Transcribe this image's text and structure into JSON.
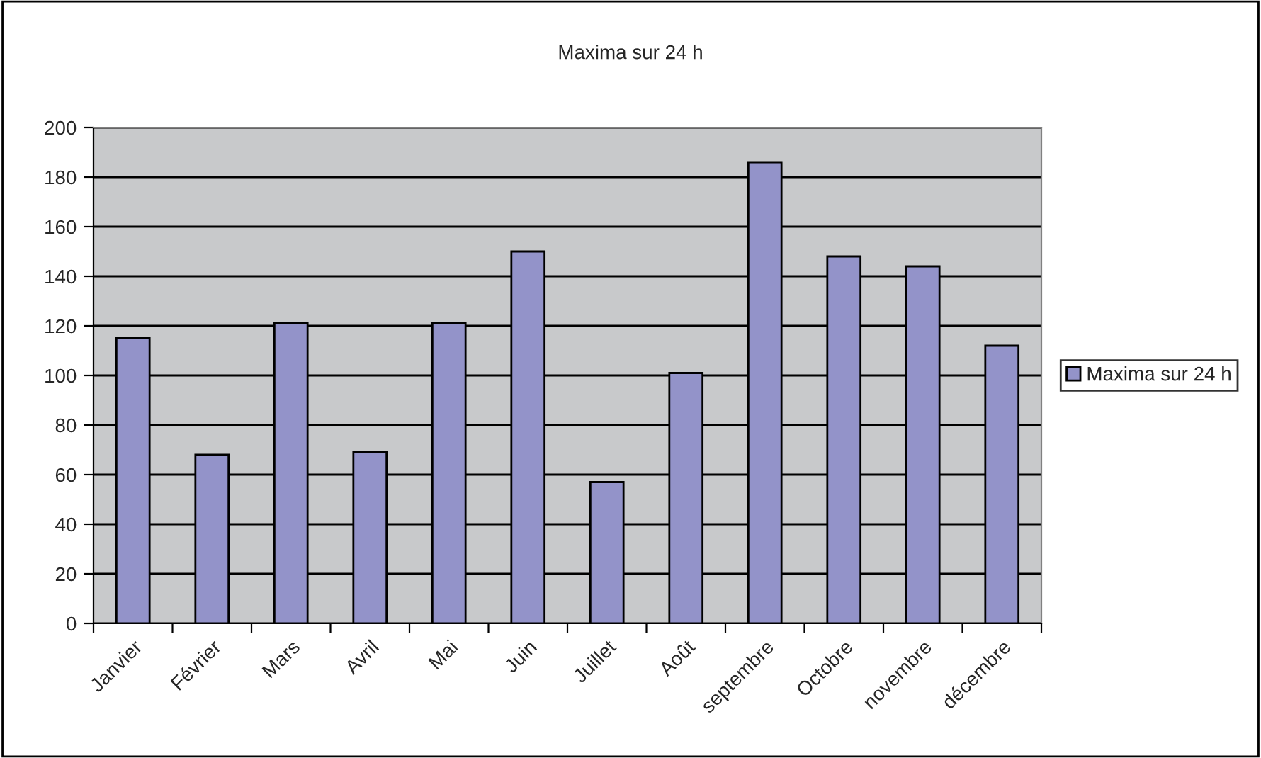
{
  "chart_data": {
    "type": "bar",
    "title": "Maxima sur 24 h",
    "categories": [
      "Janvier",
      "Février",
      "Mars",
      "Avril",
      "Mai",
      "Juin",
      "Juillet",
      "Août",
      "septembre",
      "Octobre",
      "novembre",
      "décembre"
    ],
    "series": [
      {
        "name": "Maxima sur 24 h",
        "color": "#9393c9",
        "values": [
          115,
          68,
          121,
          69,
          121,
          150,
          57,
          101,
          186,
          148,
          144,
          112
        ]
      }
    ],
    "ylim": [
      0,
      200
    ],
    "yticks": [
      0,
      20,
      40,
      60,
      80,
      100,
      120,
      140,
      160,
      180,
      200
    ],
    "grid": "y",
    "legend": "right"
  }
}
